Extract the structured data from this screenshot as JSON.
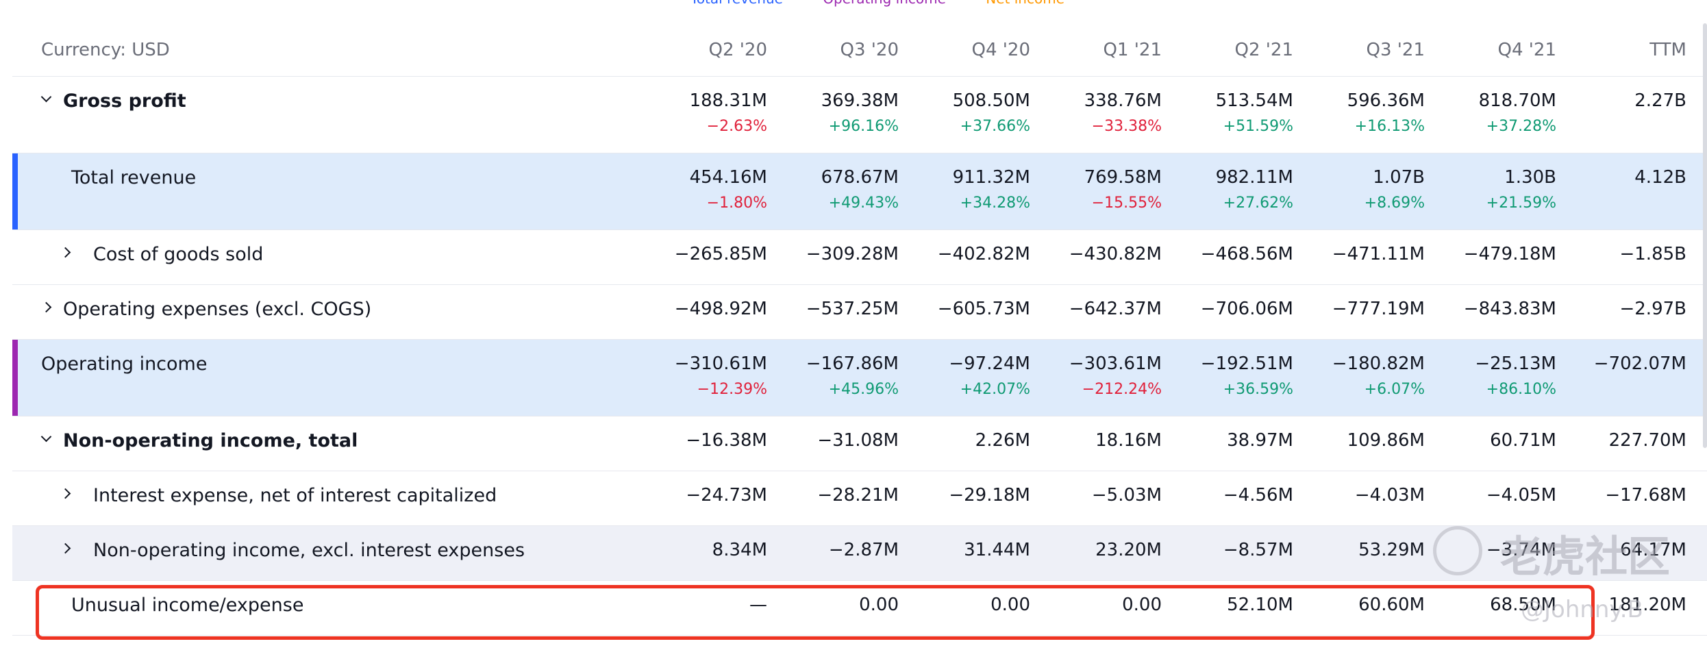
{
  "legend": [
    {
      "label": "Total revenue",
      "color": "#2962ff"
    },
    {
      "label": "Operating income",
      "color": "#9c27b0"
    },
    {
      "label": "Net income",
      "color": "#ff9800"
    }
  ],
  "header": {
    "currency_label": "Currency: USD",
    "periods": [
      "Q2 '20",
      "Q3 '20",
      "Q4 '20",
      "Q1 '21",
      "Q2 '21",
      "Q3 '21",
      "Q4 '21",
      "TTM"
    ]
  },
  "rows": [
    {
      "label": "Gross profit",
      "style": "bold",
      "expand": "down",
      "indent": 1,
      "values": [
        "188.31M",
        "369.38M",
        "508.50M",
        "338.76M",
        "513.54M",
        "596.36M",
        "818.70M",
        "2.27B"
      ],
      "pcts": [
        "−2.63%",
        "+96.16%",
        "+37.66%",
        "−33.38%",
        "+51.59%",
        "+16.13%",
        "+37.28%",
        ""
      ]
    },
    {
      "label": "Total revenue",
      "style": "highlight",
      "accent": "#2962ff",
      "indent": 2,
      "values": [
        "454.16M",
        "678.67M",
        "911.32M",
        "769.58M",
        "982.11M",
        "1.07B",
        "1.30B",
        "4.12B"
      ],
      "pcts": [
        "−1.80%",
        "+49.43%",
        "+34.28%",
        "−15.55%",
        "+27.62%",
        "+8.69%",
        "+21.59%",
        ""
      ]
    },
    {
      "label": "Cost of goods sold",
      "expand": "right",
      "indent": 2,
      "values": [
        "−265.85M",
        "−309.28M",
        "−402.82M",
        "−430.82M",
        "−468.56M",
        "−471.11M",
        "−479.18M",
        "−1.85B"
      ]
    },
    {
      "label": "Operating expenses (excl. COGS)",
      "expand": "right",
      "indent": 1,
      "values": [
        "−498.92M",
        "−537.25M",
        "−605.73M",
        "−642.37M",
        "−706.06M",
        "−777.19M",
        "−843.83M",
        "−2.97B"
      ]
    },
    {
      "label": "Operating income",
      "style": "highlight",
      "accent": "#9c27b0",
      "indent": 0,
      "values": [
        "−310.61M",
        "−167.86M",
        "−97.24M",
        "−303.61M",
        "−192.51M",
        "−180.82M",
        "−25.13M",
        "−702.07M"
      ],
      "pcts": [
        "−12.39%",
        "+45.96%",
        "+42.07%",
        "−212.24%",
        "+36.59%",
        "+6.07%",
        "+86.10%",
        ""
      ]
    },
    {
      "label": "Non-operating income, total",
      "style": "bold",
      "expand": "down",
      "indent": 1,
      "values": [
        "−16.38M",
        "−31.08M",
        "2.26M",
        "18.16M",
        "38.97M",
        "109.86M",
        "60.71M",
        "227.70M"
      ]
    },
    {
      "label": "Interest expense, net of interest capitalized",
      "expand": "right",
      "indent": 2,
      "values": [
        "−24.73M",
        "−28.21M",
        "−29.18M",
        "−5.03M",
        "−4.56M",
        "−4.03M",
        "−4.05M",
        "−17.68M"
      ]
    },
    {
      "label": "Non-operating income, excl. interest expenses",
      "style": "alt",
      "expand": "right",
      "indent": 2,
      "values": [
        "8.34M",
        "−2.87M",
        "31.44M",
        "23.20M",
        "−8.57M",
        "53.29M",
        "−3.74M",
        "64.17M"
      ]
    },
    {
      "label": "Unusual income/expense",
      "indent": 2,
      "values": [
        "—",
        "0.00",
        "0.00",
        "0.00",
        "52.10M",
        "60.60M",
        "68.50M",
        "181.20M"
      ]
    }
  ],
  "watermark": {
    "brand": "老虎社区",
    "user": "@Johnny.B"
  }
}
